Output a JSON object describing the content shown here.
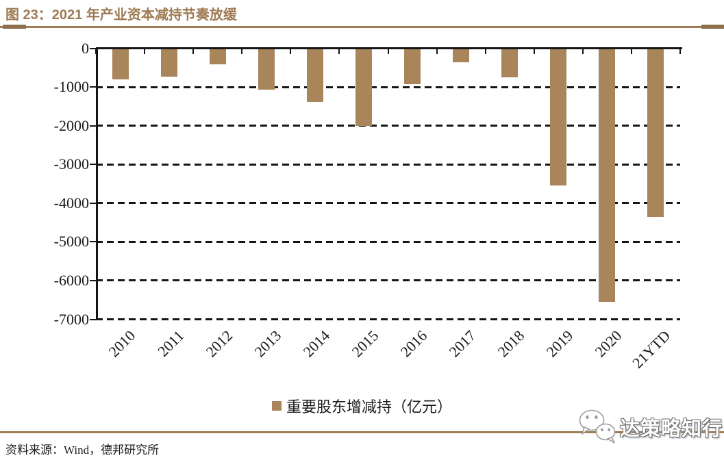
{
  "figure": {
    "title": "图 23：2021 年产业资本减持节奏放缓",
    "source": "资料来源：Wind，德邦研究所",
    "watermark": "达策略知行",
    "colors": {
      "accent_brown": "#9d7a52",
      "rule_brown": "#a07c54",
      "bar_tan": "#a8855b",
      "axis_black": "#151515"
    }
  },
  "chart_data": {
    "type": "bar",
    "title": "图 23：2021 年产业资本减持节奏放缓",
    "categories": [
      "2010",
      "2011",
      "2012",
      "2013",
      "2014",
      "2015",
      "2016",
      "2017",
      "2018",
      "2019",
      "2020",
      "21YTD"
    ],
    "values": [
      -800,
      -730,
      -420,
      -1070,
      -1390,
      -2000,
      -930,
      -370,
      -760,
      -3550,
      -6550,
      -4350
    ],
    "legend": [
      "重要股东增减持（亿元）"
    ],
    "xlabel": "",
    "ylabel": "",
    "ylim": [
      -7000,
      0
    ],
    "yticks": [
      0,
      -1000,
      -2000,
      -3000,
      -4000,
      -5000,
      -6000,
      -7000
    ],
    "grid": "horizontal-dashed",
    "legend_position": "bottom",
    "bar_color": "#a8855b"
  }
}
